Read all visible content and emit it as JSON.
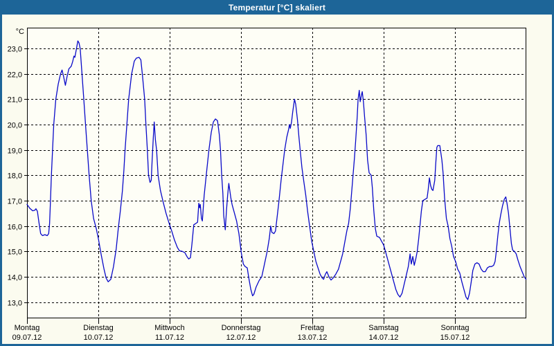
{
  "window": {
    "title": "Temperatur [°C] skaliert"
  },
  "colors": {
    "titlebar": "#1D6598",
    "window_border": "#1D6598",
    "background": "#FBFBEF",
    "plot_background": "#FEFEF6",
    "grid": "#000000",
    "axis": "#000000",
    "series": "#0808C8",
    "title_text": "#FFFFFF",
    "label_text": "#000000"
  },
  "chart_data": {
    "type": "line",
    "title": "Temperatur [°C] skaliert",
    "ylabel": "°C",
    "grid": "dashed",
    "legend": "none",
    "y_ticks": [
      {
        "value": 23,
        "label": "23,0"
      },
      {
        "value": 22,
        "label": "22,0"
      },
      {
        "value": 21,
        "label": "21,0"
      },
      {
        "value": 20,
        "label": "20,0"
      },
      {
        "value": 19,
        "label": "19,0"
      },
      {
        "value": 18,
        "label": "18,0"
      },
      {
        "value": 17,
        "label": "17,0"
      },
      {
        "value": 16,
        "label": "16,0"
      },
      {
        "value": 15,
        "label": "15,0"
      },
      {
        "value": 14,
        "label": "14,0"
      },
      {
        "value": 13,
        "label": "13,0"
      }
    ],
    "ylim": [
      12.36,
      23.82
    ],
    "x_days": [
      {
        "name": "Montag",
        "date": "09.07.12"
      },
      {
        "name": "Dienstag",
        "date": "10.07.12"
      },
      {
        "name": "Mittwoch",
        "date": "11.07.12"
      },
      {
        "name": "Donnerstag",
        "date": "12.07.12"
      },
      {
        "name": "Freitag",
        "date": "13.07.12"
      },
      {
        "name": "Samstag",
        "date": "14.07.12"
      },
      {
        "name": "Sonntag",
        "date": "15.07.12"
      }
    ],
    "x_unit": "hours_since_monday_00:00",
    "xlim": [
      0,
      168
    ],
    "series": [
      {
        "name": "Temperatur [°C]",
        "color": "#0808C8",
        "points": [
          [
            0,
            16.85
          ],
          [
            0.9,
            16.7
          ],
          [
            1.9,
            16.6
          ],
          [
            2.6,
            16.62
          ],
          [
            3.0,
            16.68
          ],
          [
            3.5,
            16.58
          ],
          [
            4.0,
            16.15
          ],
          [
            4.6,
            15.7
          ],
          [
            5.2,
            15.62
          ],
          [
            6.0,
            15.66
          ],
          [
            6.8,
            15.62
          ],
          [
            7.3,
            15.7
          ],
          [
            7.6,
            16.1
          ],
          [
            7.9,
            17.0
          ],
          [
            8.2,
            18.0
          ],
          [
            8.6,
            19.0
          ],
          [
            9.0,
            20.0
          ],
          [
            9.7,
            21.0
          ],
          [
            10.5,
            21.6
          ],
          [
            11.3,
            22.0
          ],
          [
            11.8,
            22.15
          ],
          [
            12.3,
            21.9
          ],
          [
            12.9,
            21.55
          ],
          [
            13.5,
            21.9
          ],
          [
            14.1,
            22.2
          ],
          [
            14.9,
            22.3
          ],
          [
            15.4,
            22.5
          ],
          [
            15.8,
            22.7
          ],
          [
            16.1,
            22.65
          ],
          [
            16.5,
            22.9
          ],
          [
            17.1,
            23.3
          ],
          [
            17.5,
            23.22
          ],
          [
            17.9,
            23.0
          ],
          [
            18.5,
            22.0
          ],
          [
            19.1,
            21.0
          ],
          [
            19.7,
            20.0
          ],
          [
            20.3,
            19.0
          ],
          [
            20.9,
            18.0
          ],
          [
            21.6,
            17.0
          ],
          [
            22.4,
            16.3
          ],
          [
            23.3,
            15.9
          ],
          [
            24.1,
            15.45
          ],
          [
            24.9,
            14.9
          ],
          [
            25.9,
            14.3
          ],
          [
            26.6,
            13.95
          ],
          [
            27.3,
            13.8
          ],
          [
            28.2,
            13.9
          ],
          [
            29.1,
            14.4
          ],
          [
            30.0,
            15.1
          ],
          [
            30.7,
            15.9
          ],
          [
            31.4,
            16.6
          ],
          [
            32.1,
            17.4
          ],
          [
            32.6,
            18.2
          ],
          [
            33.0,
            19.0
          ],
          [
            33.6,
            20.0
          ],
          [
            34.2,
            21.0
          ],
          [
            35.2,
            22.0
          ],
          [
            36.1,
            22.5
          ],
          [
            36.8,
            22.62
          ],
          [
            37.7,
            22.65
          ],
          [
            38.3,
            22.55
          ],
          [
            38.8,
            22.0
          ],
          [
            39.6,
            21.0
          ],
          [
            40.0,
            20.0
          ],
          [
            40.5,
            19.0
          ],
          [
            40.9,
            18.0
          ],
          [
            41.4,
            17.72
          ],
          [
            41.8,
            17.8
          ],
          [
            42.1,
            18.6
          ],
          [
            42.5,
            19.5
          ],
          [
            42.8,
            20.1
          ],
          [
            43.2,
            19.4
          ],
          [
            43.6,
            19.0
          ],
          [
            44.1,
            18.0
          ],
          [
            44.9,
            17.4
          ],
          [
            45.9,
            16.9
          ],
          [
            46.8,
            16.5
          ],
          [
            47.7,
            16.15
          ],
          [
            48.7,
            15.8
          ],
          [
            49.6,
            15.45
          ],
          [
            50.6,
            15.15
          ],
          [
            51.3,
            15.02
          ],
          [
            52.2,
            15.0
          ],
          [
            53.1,
            14.95
          ],
          [
            53.8,
            14.8
          ],
          [
            54.4,
            14.7
          ],
          [
            55.0,
            14.75
          ],
          [
            55.5,
            15.3
          ],
          [
            56.1,
            16.05
          ],
          [
            56.8,
            16.1
          ],
          [
            57.4,
            16.15
          ],
          [
            57.8,
            16.9
          ],
          [
            58.1,
            16.72
          ],
          [
            58.3,
            16.85
          ],
          [
            58.7,
            16.3
          ],
          [
            59.0,
            16.2
          ],
          [
            59.6,
            17.2
          ],
          [
            60.4,
            18.1
          ],
          [
            61.2,
            19.0
          ],
          [
            62.0,
            19.7
          ],
          [
            62.7,
            20.1
          ],
          [
            63.4,
            20.22
          ],
          [
            64.1,
            20.15
          ],
          [
            64.7,
            19.6
          ],
          [
            65.1,
            19.0
          ],
          [
            65.5,
            18.0
          ],
          [
            65.9,
            17.3
          ],
          [
            66.2,
            16.4
          ],
          [
            66.7,
            15.85
          ],
          [
            67.1,
            16.6
          ],
          [
            67.5,
            17.2
          ],
          [
            67.9,
            17.68
          ],
          [
            68.6,
            17.1
          ],
          [
            69.0,
            16.85
          ],
          [
            69.7,
            16.55
          ],
          [
            70.5,
            16.2
          ],
          [
            71.3,
            15.7
          ],
          [
            72.1,
            14.95
          ],
          [
            72.8,
            14.5
          ],
          [
            73.4,
            14.4
          ],
          [
            74.1,
            14.35
          ],
          [
            74.7,
            13.9
          ],
          [
            75.3,
            13.5
          ],
          [
            75.9,
            13.25
          ],
          [
            76.3,
            13.3
          ],
          [
            77.1,
            13.6
          ],
          [
            78.1,
            13.85
          ],
          [
            79.0,
            14.0
          ],
          [
            79.9,
            14.5
          ],
          [
            80.8,
            15.0
          ],
          [
            81.5,
            15.5
          ],
          [
            82.0,
            16.0
          ],
          [
            82.4,
            15.75
          ],
          [
            83.1,
            15.7
          ],
          [
            83.6,
            15.8
          ],
          [
            84.3,
            16.5
          ],
          [
            84.8,
            17.0
          ],
          [
            85.5,
            17.8
          ],
          [
            86.1,
            18.4
          ],
          [
            86.7,
            19.0
          ],
          [
            87.4,
            19.5
          ],
          [
            88.0,
            19.8
          ],
          [
            88.3,
            20.0
          ],
          [
            88.6,
            19.85
          ],
          [
            89.0,
            20.1
          ],
          [
            89.4,
            20.5
          ],
          [
            90.0,
            21.0
          ],
          [
            90.4,
            20.8
          ],
          [
            91.0,
            20.2
          ],
          [
            91.5,
            19.5
          ],
          [
            92.0,
            18.9
          ],
          [
            92.5,
            18.3
          ],
          [
            93.2,
            17.7
          ],
          [
            93.8,
            17.2
          ],
          [
            94.4,
            16.6
          ],
          [
            95.1,
            16.0
          ],
          [
            95.8,
            15.4
          ],
          [
            96.5,
            15.0
          ],
          [
            97.2,
            14.6
          ],
          [
            97.9,
            14.35
          ],
          [
            98.6,
            14.1
          ],
          [
            99.3,
            13.95
          ],
          [
            99.8,
            13.9
          ],
          [
            100.4,
            14.1
          ],
          [
            100.9,
            14.2
          ],
          [
            101.6,
            14.0
          ],
          [
            102.3,
            13.87
          ],
          [
            103.0,
            13.95
          ],
          [
            103.9,
            14.1
          ],
          [
            104.8,
            14.3
          ],
          [
            105.5,
            14.6
          ],
          [
            106.2,
            14.9
          ],
          [
            106.9,
            15.35
          ],
          [
            107.6,
            15.8
          ],
          [
            108.2,
            16.1
          ],
          [
            108.8,
            16.7
          ],
          [
            109.2,
            17.3
          ],
          [
            109.7,
            18.0
          ],
          [
            110.2,
            18.7
          ],
          [
            110.6,
            19.4
          ],
          [
            111.1,
            20.3
          ],
          [
            111.4,
            21.0
          ],
          [
            111.8,
            21.35
          ],
          [
            112.1,
            20.9
          ],
          [
            112.5,
            21.15
          ],
          [
            112.8,
            21.3
          ],
          [
            113.2,
            20.9
          ],
          [
            113.6,
            20.3
          ],
          [
            114.1,
            19.6
          ],
          [
            114.6,
            18.6
          ],
          [
            115.1,
            18.1
          ],
          [
            115.8,
            18.0
          ],
          [
            116.2,
            17.5
          ],
          [
            116.7,
            16.6
          ],
          [
            117.2,
            15.9
          ],
          [
            117.7,
            15.6
          ],
          [
            118.6,
            15.55
          ],
          [
            119.3,
            15.4
          ],
          [
            120.0,
            15.25
          ],
          [
            120.6,
            15.0
          ],
          [
            121.3,
            14.7
          ],
          [
            122.0,
            14.4
          ],
          [
            122.7,
            14.1
          ],
          [
            123.4,
            13.8
          ],
          [
            124.1,
            13.5
          ],
          [
            124.8,
            13.3
          ],
          [
            125.5,
            13.2
          ],
          [
            126.2,
            13.35
          ],
          [
            126.9,
            13.7
          ],
          [
            127.6,
            14.05
          ],
          [
            128.3,
            14.4
          ],
          [
            128.9,
            14.9
          ],
          [
            129.3,
            14.5
          ],
          [
            129.8,
            14.8
          ],
          [
            130.3,
            14.45
          ],
          [
            130.8,
            14.7
          ],
          [
            131.3,
            15.0
          ],
          [
            131.8,
            15.5
          ],
          [
            132.2,
            16.0
          ],
          [
            132.7,
            16.6
          ],
          [
            133.2,
            17.0
          ],
          [
            133.9,
            17.05
          ],
          [
            134.6,
            17.1
          ],
          [
            135.0,
            17.45
          ],
          [
            135.4,
            17.9
          ],
          [
            135.8,
            17.6
          ],
          [
            136.2,
            17.45
          ],
          [
            136.6,
            17.4
          ],
          [
            137.2,
            17.8
          ],
          [
            137.5,
            18.4
          ],
          [
            137.9,
            19.1
          ],
          [
            138.2,
            19.17
          ],
          [
            138.9,
            19.17
          ],
          [
            139.3,
            18.85
          ],
          [
            139.6,
            18.6
          ],
          [
            140.0,
            18.1
          ],
          [
            140.5,
            17.1
          ],
          [
            141.1,
            16.3
          ],
          [
            141.7,
            16.0
          ],
          [
            142.3,
            15.5
          ],
          [
            142.9,
            15.2
          ],
          [
            143.5,
            14.8
          ],
          [
            144.2,
            14.6
          ],
          [
            144.9,
            14.3
          ],
          [
            145.6,
            14.15
          ],
          [
            146.3,
            13.8
          ],
          [
            147.0,
            13.5
          ],
          [
            147.7,
            13.2
          ],
          [
            148.3,
            13.1
          ],
          [
            148.9,
            13.35
          ],
          [
            149.4,
            13.75
          ],
          [
            150.0,
            14.25
          ],
          [
            150.7,
            14.5
          ],
          [
            151.4,
            14.55
          ],
          [
            152.1,
            14.5
          ],
          [
            152.8,
            14.3
          ],
          [
            153.5,
            14.2
          ],
          [
            154.2,
            14.2
          ],
          [
            154.9,
            14.35
          ],
          [
            155.6,
            14.4
          ],
          [
            156.3,
            14.4
          ],
          [
            157.0,
            14.45
          ],
          [
            157.5,
            14.6
          ],
          [
            157.9,
            15.0
          ],
          [
            158.4,
            15.6
          ],
          [
            158.9,
            16.1
          ],
          [
            159.4,
            16.45
          ],
          [
            160.0,
            16.8
          ],
          [
            160.6,
            17.05
          ],
          [
            161.1,
            17.15
          ],
          [
            161.5,
            16.9
          ],
          [
            162.0,
            16.5
          ],
          [
            162.5,
            15.9
          ],
          [
            163.0,
            15.3
          ],
          [
            163.4,
            15.05
          ],
          [
            164.0,
            15.0
          ],
          [
            164.6,
            14.9
          ],
          [
            165.2,
            14.65
          ],
          [
            165.9,
            14.4
          ],
          [
            166.6,
            14.2
          ],
          [
            167.3,
            14.0
          ],
          [
            167.9,
            13.9
          ]
        ]
      }
    ]
  }
}
